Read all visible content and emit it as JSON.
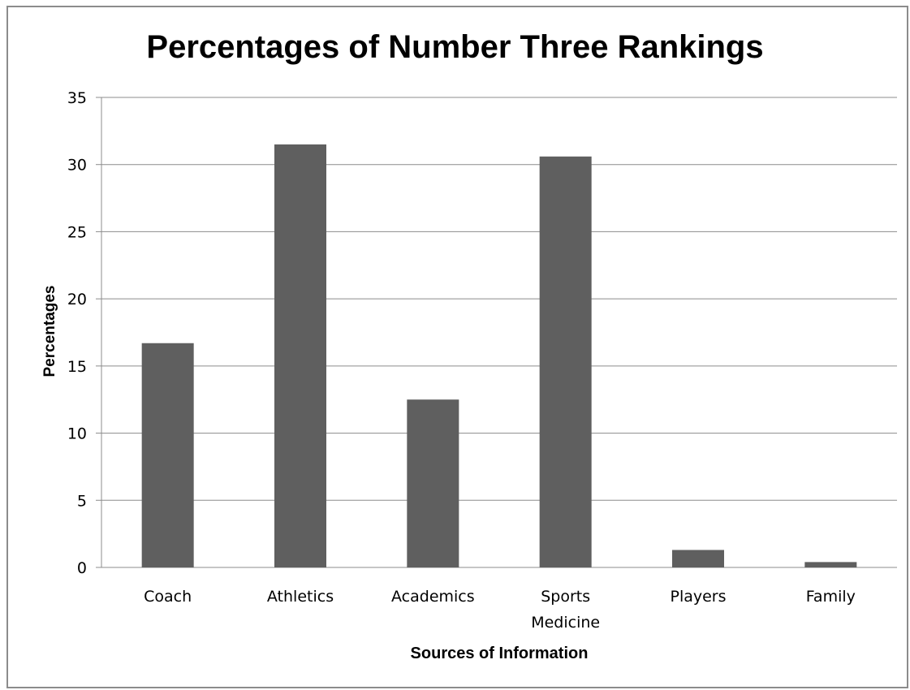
{
  "chart_data": {
    "type": "bar",
    "title": "Percentages of Number Three Rankings",
    "xlabel": "Sources of Information",
    "ylabel": "Percentages",
    "categories": [
      "Coach",
      "Athletics",
      "Academics",
      "Sports Medicine",
      "Players",
      "Family"
    ],
    "category_lines": [
      [
        "Coach"
      ],
      [
        "Athletics"
      ],
      [
        "Academics"
      ],
      [
        "Sports",
        "Medicine"
      ],
      [
        "Players"
      ],
      [
        "Family"
      ]
    ],
    "values": [
      16.7,
      31.5,
      12.5,
      30.6,
      1.3,
      0.4
    ],
    "ylim": [
      0,
      35
    ],
    "yticks": [
      0,
      5,
      10,
      15,
      20,
      25,
      30,
      35
    ],
    "grid": true,
    "legend": "none",
    "bar_color": "#5f5f5f"
  }
}
